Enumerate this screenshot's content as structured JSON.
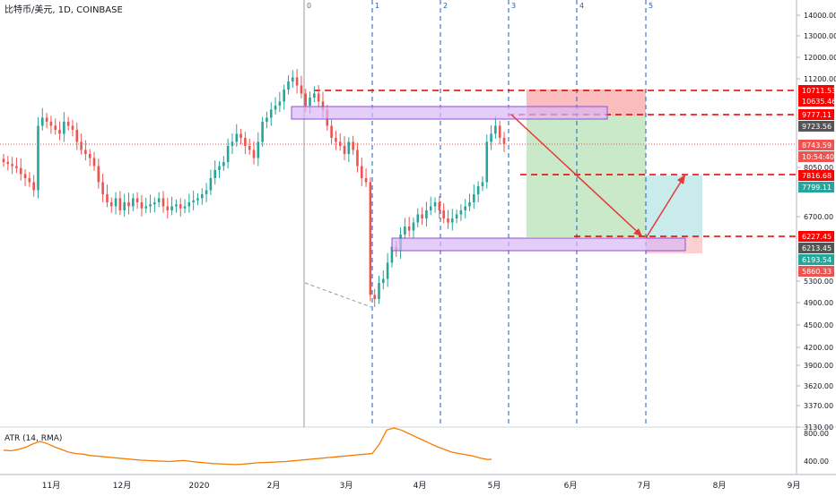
{
  "header": {
    "symbol": "比特币/美元, 1D, COINBASE"
  },
  "fib_labels": [
    "0",
    "1",
    "2",
    "3",
    "4",
    "5"
  ],
  "price_axis": {
    "ticks": [
      "14000.00",
      "13000.00",
      "12000.00",
      "11200.00",
      "8050.00",
      "6700.00",
      "5300.00",
      "4900.00",
      "4500.00",
      "4200.00",
      "3900.00",
      "3620.00",
      "3370.00",
      "3130.00"
    ],
    "badges": [
      {
        "text": "10711.53",
        "color": "#ff0000"
      },
      {
        "text": "10635.46",
        "color": "#ff0000"
      },
      {
        "text": "9777.11",
        "color": "#ff0000"
      },
      {
        "text": "9723.56",
        "color": "#555555"
      },
      {
        "text": "8743.59",
        "color": "#ef5350"
      },
      {
        "text": "10:54:40",
        "color": "#ef5350"
      },
      {
        "text": "7816.68",
        "color": "#ff0000"
      },
      {
        "text": "7799.11",
        "color": "#26a69a"
      },
      {
        "text": "6227.45",
        "color": "#ff0000"
      },
      {
        "text": "6213.45",
        "color": "#555555"
      },
      {
        "text": "6193.54",
        "color": "#26a69a"
      },
      {
        "text": "5860.33",
        "color": "#ef5350"
      }
    ]
  },
  "atr": {
    "label": "ATR (14, RMA)",
    "ticks": [
      "800.00",
      "400.00"
    ],
    "color": "#f57c00"
  },
  "time_axis": [
    "11月",
    "12月",
    "2020",
    "2月",
    "3月",
    "4月",
    "5月",
    "6月",
    "7月",
    "8月",
    "9月"
  ],
  "colors": {
    "up": "#26a69a",
    "down": "#ef5350",
    "fib": "#1e5bc6",
    "dashed_red": "#e00000"
  },
  "chart_data": {
    "type": "candlestick",
    "series": [
      {
        "name": "比特币/美元",
        "close": [
          8300,
          8250,
          8200,
          8150,
          8000,
          7900,
          7800,
          7600,
          9200,
          9400,
          9300,
          9200,
          9100,
          9000,
          9300,
          9200,
          9100,
          8800,
          8600,
          8500,
          8400,
          8200,
          7800,
          7500,
          7300,
          7200,
          7400,
          7100,
          7300,
          7200,
          7400,
          7300,
          7150,
          7200,
          7250,
          7300,
          7400,
          7200,
          7100,
          7200,
          7250,
          7150,
          7200,
          7300,
          7350,
          7400,
          7500,
          7600,
          7900,
          8100,
          8200,
          8300,
          8700,
          8800,
          9000,
          8900,
          8700,
          8600,
          8400,
          8800,
          9300,
          9400,
          9600,
          9700,
          9800,
          10100,
          10300,
          10400,
          10200,
          10000,
          9700,
          9900,
          10000,
          9800,
          9600,
          9200,
          8900,
          8800,
          8700,
          8500,
          8800,
          8600,
          8200,
          7900,
          7800,
          5000,
          4900,
          5300,
          5400,
          5800,
          6200,
          6100,
          6500,
          6700,
          6600,
          6800,
          7000,
          6900,
          7100,
          7200,
          7300,
          7100,
          6900,
          6800,
          6900,
          7000,
          7100,
          7200,
          7300,
          7500,
          7700,
          7800,
          8800,
          9000,
          9200,
          8900,
          8750
        ]
      },
      {
        "name": "ATR (14, RMA)",
        "values": [
          550,
          540,
          560,
          590,
          640,
          680,
          650,
          600,
          560,
          520,
          500,
          490,
          470,
          460,
          450,
          440,
          430,
          420,
          410,
          400,
          395,
          390,
          385,
          380,
          390,
          395,
          380,
          370,
          360,
          350,
          345,
          340,
          335,
          340,
          350,
          360,
          365,
          370,
          375,
          380,
          390,
          400,
          410,
          420,
          430,
          440,
          450,
          460,
          470,
          480,
          490,
          500,
          640,
          850,
          880,
          850,
          800,
          750,
          700,
          650,
          600,
          560,
          520,
          500,
          480,
          460,
          430,
          410,
          420,
          430
        ]
      }
    ],
    "price_markers": [
      10711.53,
      10635.46,
      9777.11,
      9723.56,
      8743.59,
      7816.68,
      7799.11,
      6227.45,
      6213.45,
      6193.54,
      5860.33
    ]
  }
}
